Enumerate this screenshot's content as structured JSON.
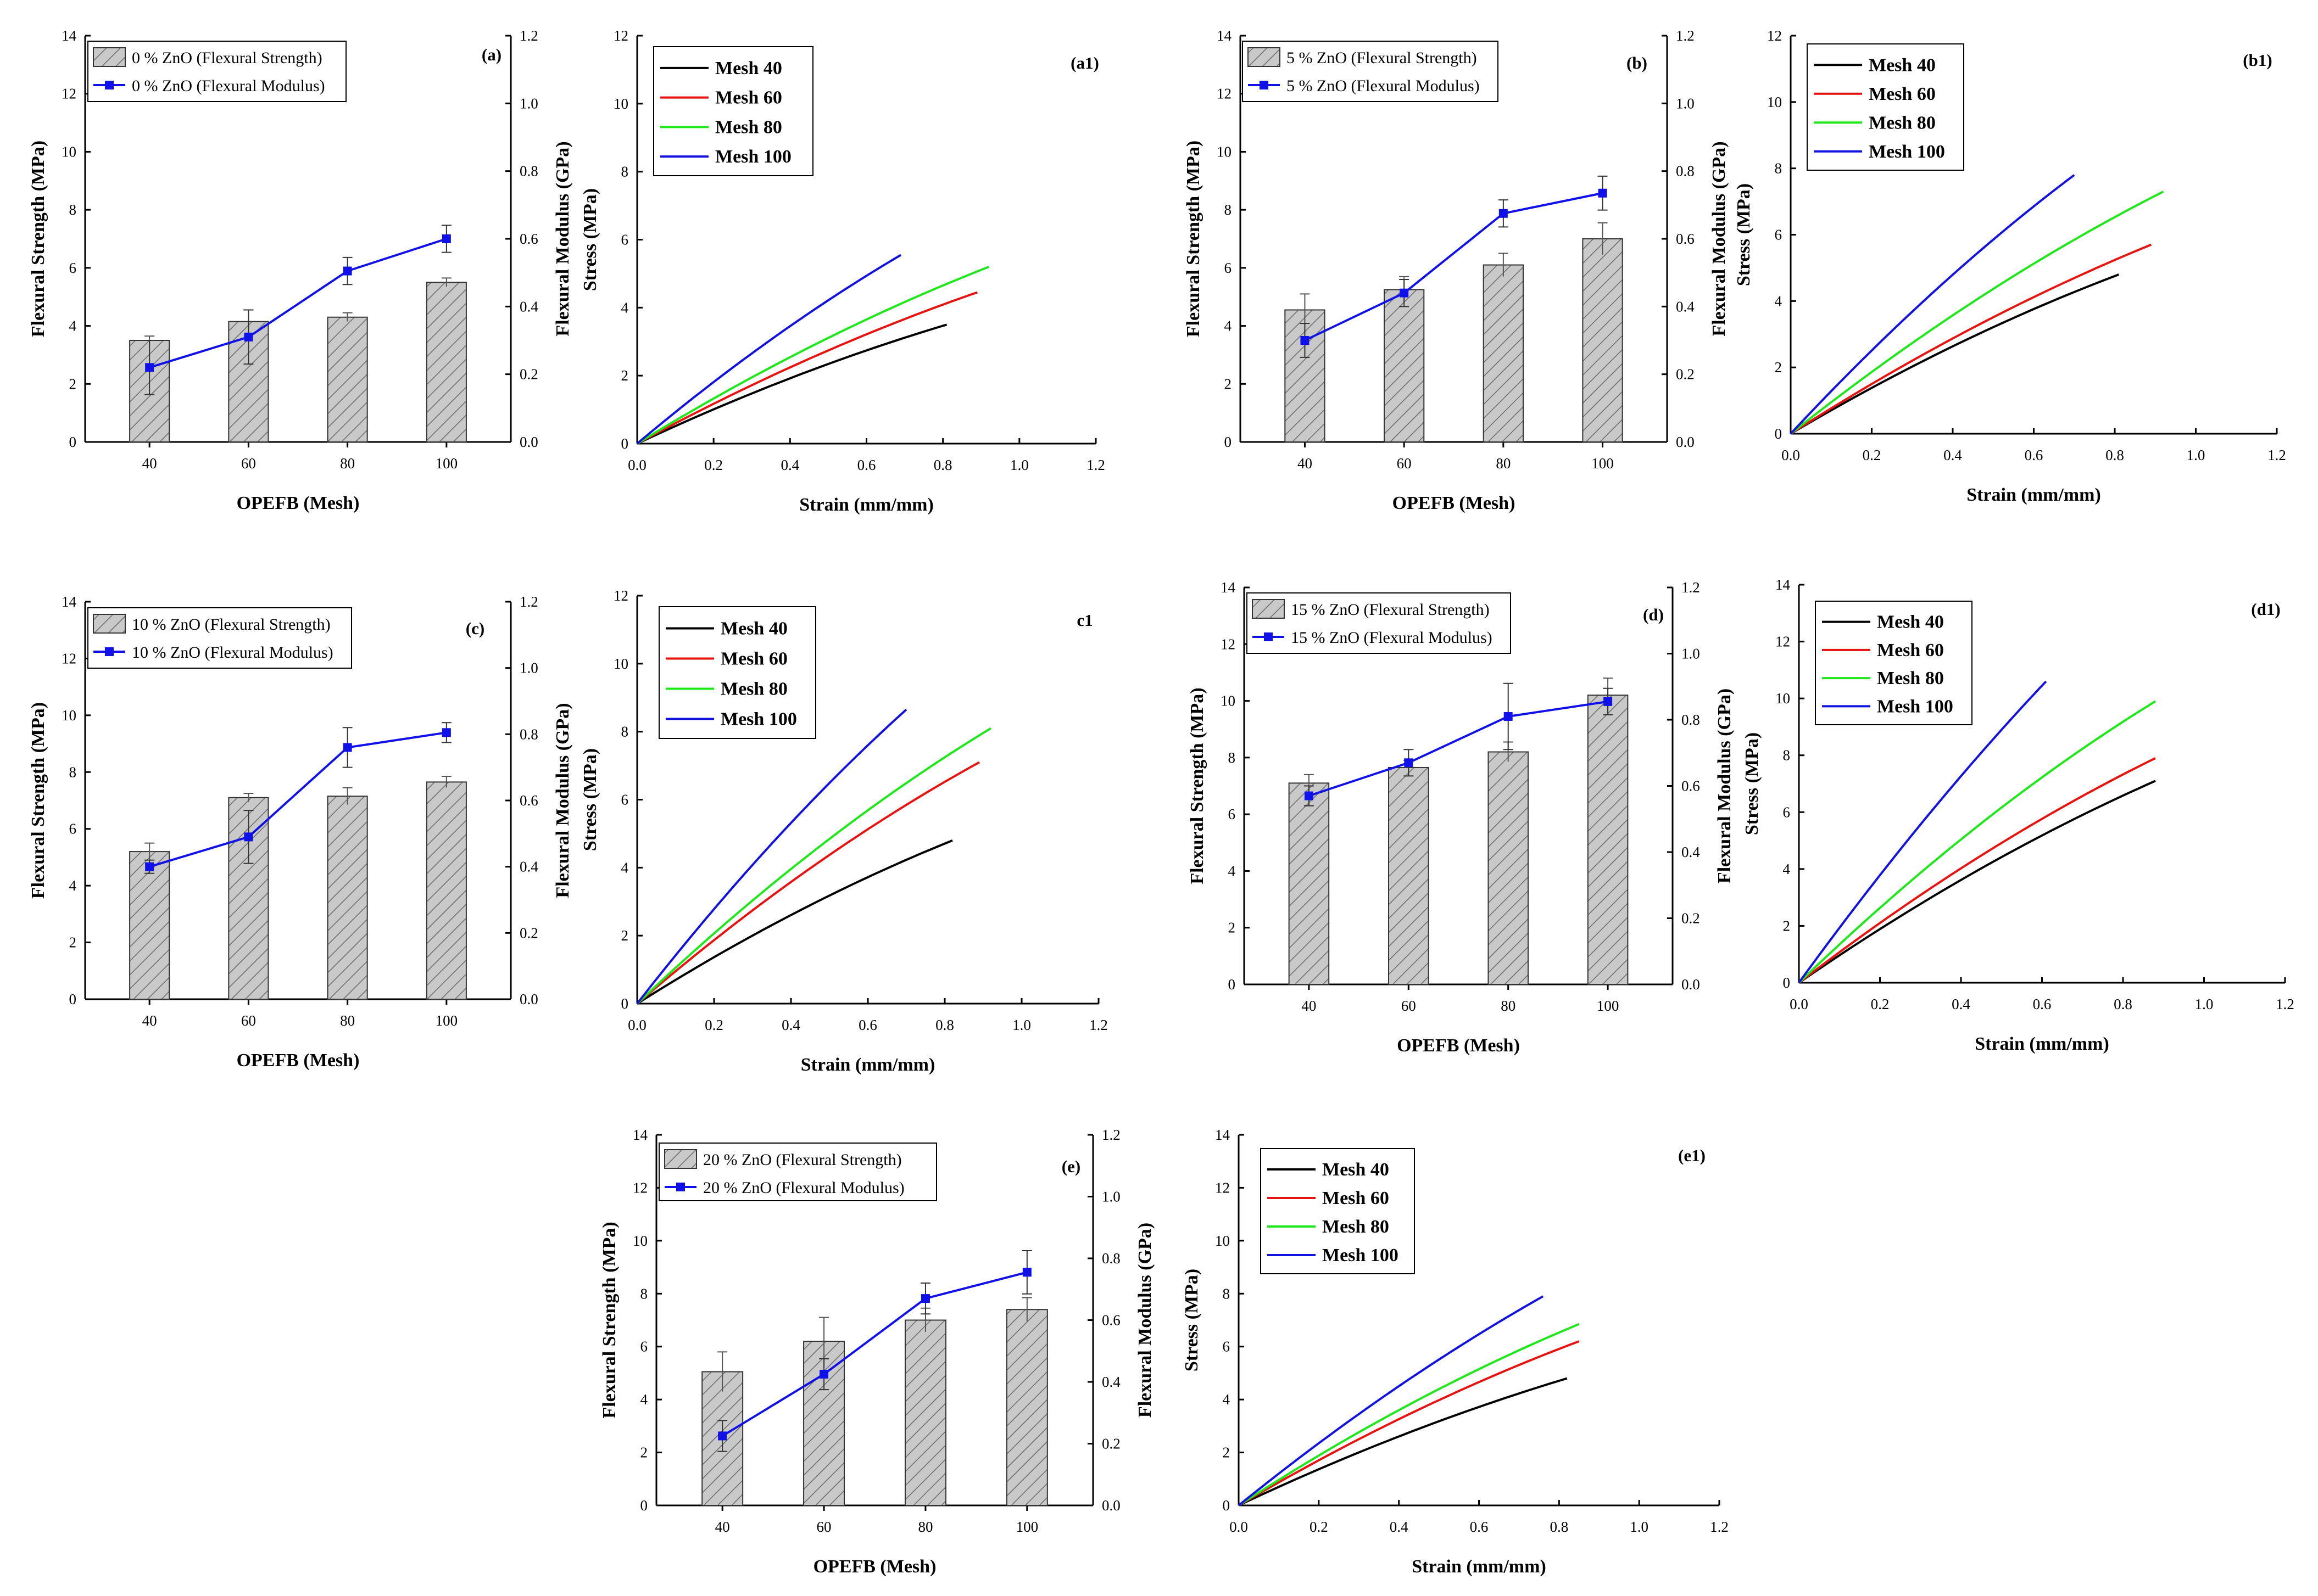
{
  "chart_data": [
    {
      "id": "a",
      "type": "bar",
      "label": "(a)",
      "xlabel": "OPEFB (Mesh)",
      "ylabel": "Flexural Strength (MPa)",
      "ylabel2": "Flexural Modulus (GPa)",
      "categories": [
        "40",
        "60",
        "80",
        "100"
      ],
      "ylim": [
        0,
        14
      ],
      "yticks": [
        "0",
        "2",
        "4",
        "6",
        "8",
        "10",
        "12",
        "14"
      ],
      "ylim2": [
        0,
        1.2
      ],
      "yticks2": [
        "0.0",
        "0.2",
        "0.4",
        "0.6",
        "0.8",
        "1.0",
        "1.2"
      ],
      "bar_series": {
        "name": "0 % ZnO (Flexural Strength)",
        "values": [
          3.5,
          4.15,
          4.3,
          5.5
        ],
        "errors": [
          0.15,
          0.4,
          0.15,
          0.15
        ]
      },
      "line_series": {
        "name": "0 % ZnO (Flexural Modulus)",
        "values": [
          0.22,
          0.31,
          0.505,
          0.6
        ],
        "errors": [
          0.08,
          0.08,
          0.04,
          0.04
        ]
      },
      "colors": {
        "line": "#1010e8",
        "bar": "#c8c8c8"
      }
    },
    {
      "id": "a1",
      "type": "line",
      "label": "(a1)",
      "xlabel": "Strain (mm/mm)",
      "ylabel": "Stress (MPa)",
      "xlim": [
        0,
        1.2
      ],
      "xticks": [
        "0.0",
        "0.2",
        "0.4",
        "0.6",
        "0.8",
        "1.0",
        "1.2"
      ],
      "ylim": [
        0,
        12
      ],
      "yticks": [
        "0",
        "2",
        "4",
        "6",
        "8",
        "10",
        "12"
      ],
      "series": [
        {
          "name": "Mesh 40",
          "color": "#000000",
          "x_end": 0.81,
          "y_end": 3.5,
          "curvature": 0.1
        },
        {
          "name": "Mesh 60",
          "color": "#e8120e",
          "x_end": 0.89,
          "y_end": 4.45,
          "curvature": 0.1
        },
        {
          "name": "Mesh 80",
          "color": "#1ee81a",
          "x_end": 0.92,
          "y_end": 5.2,
          "curvature": 0.1
        },
        {
          "name": "Mesh 100",
          "color": "#1212e0",
          "x_end": 0.69,
          "y_end": 5.55,
          "curvature": 0.08
        }
      ]
    },
    {
      "id": "b",
      "type": "bar",
      "label": "(b)",
      "xlabel": "OPEFB (Mesh)",
      "ylabel": "Flexural Strength (MPa)",
      "ylabel2": "Flexural Modulus (GPa)",
      "categories": [
        "40",
        "60",
        "80",
        "100"
      ],
      "ylim": [
        0,
        14
      ],
      "yticks": [
        "0",
        "2",
        "4",
        "6",
        "8",
        "10",
        "12",
        "14"
      ],
      "ylim2": [
        0,
        1.2
      ],
      "yticks2": [
        "0.0",
        "0.2",
        "0.4",
        "0.6",
        "0.8",
        "1.0",
        "1.2"
      ],
      "bar_series": {
        "name": "5 % ZnO (Flexural Strength)",
        "values": [
          4.55,
          5.25,
          6.1,
          7.0
        ],
        "errors": [
          0.55,
          0.45,
          0.4,
          0.55
        ]
      },
      "line_series": {
        "name": "5 % ZnO (Flexural Modulus)",
        "values": [
          0.3,
          0.44,
          0.675,
          0.735
        ],
        "errors": [
          0.05,
          0.04,
          0.04,
          0.05
        ]
      },
      "colors": {
        "line": "#1010e8",
        "bar": "#c8c8c8"
      }
    },
    {
      "id": "b1",
      "type": "line",
      "label": "(b1)",
      "xlabel": "Strain (mm/mm)",
      "ylabel": "Stress (MPa)",
      "xlim": [
        0,
        1.2
      ],
      "xticks": [
        "0.0",
        "0.2",
        "0.4",
        "0.6",
        "0.8",
        "1.0",
        "1.2"
      ],
      "ylim": [
        0,
        12
      ],
      "yticks": [
        "0",
        "2",
        "4",
        "6",
        "8",
        "10",
        "12"
      ],
      "series": [
        {
          "name": "Mesh 40",
          "color": "#000000",
          "x_end": 0.81,
          "y_end": 4.8,
          "curvature": 0.1
        },
        {
          "name": "Mesh 60",
          "color": "#e8120e",
          "x_end": 0.89,
          "y_end": 5.7,
          "curvature": 0.1
        },
        {
          "name": "Mesh 80",
          "color": "#1ee81a",
          "x_end": 0.92,
          "y_end": 7.3,
          "curvature": 0.1
        },
        {
          "name": "Mesh 100",
          "color": "#1212e0",
          "x_end": 0.7,
          "y_end": 7.8,
          "curvature": 0.08
        }
      ]
    },
    {
      "id": "c",
      "type": "bar",
      "label": "(c)",
      "xlabel": "OPEFB (Mesh)",
      "ylabel": "Flexural Strength (MPa)",
      "ylabel2": "Flexural Modulus (GPa)",
      "categories": [
        "40",
        "60",
        "80",
        "100"
      ],
      "ylim": [
        0,
        14
      ],
      "yticks": [
        "0",
        "2",
        "4",
        "6",
        "8",
        "10",
        "12",
        "14"
      ],
      "ylim2": [
        0,
        1.2
      ],
      "yticks2": [
        "0.0",
        "0.2",
        "0.4",
        "0.6",
        "0.8",
        "1.0",
        "1.2"
      ],
      "bar_series": {
        "name": "10 % ZnO (Flexural Strength)",
        "values": [
          5.2,
          7.1,
          7.15,
          7.65
        ],
        "errors": [
          0.3,
          0.15,
          0.3,
          0.2
        ]
      },
      "line_series": {
        "name": "10 % ZnO (Flexural Modulus)",
        "values": [
          0.4,
          0.49,
          0.76,
          0.805
        ],
        "errors": [
          0.02,
          0.08,
          0.06,
          0.03
        ]
      },
      "colors": {
        "line": "#1010e8",
        "bar": "#c8c8c8"
      }
    },
    {
      "id": "c1",
      "type": "line",
      "label": "c1",
      "xlabel": "Strain (mm/mm)",
      "ylabel": "Stress (MPa)",
      "xlim": [
        0,
        1.2
      ],
      "xticks": [
        "0.0",
        "0.2",
        "0.4",
        "0.6",
        "0.8",
        "1.0",
        "1.2"
      ],
      "ylim": [
        0,
        12
      ],
      "yticks": [
        "0",
        "2",
        "4",
        "6",
        "8",
        "10",
        "12"
      ],
      "series": [
        {
          "name": "Mesh 40",
          "color": "#000000",
          "x_end": 0.82,
          "y_end": 4.8,
          "curvature": 0.1
        },
        {
          "name": "Mesh 60",
          "color": "#e8120e",
          "x_end": 0.89,
          "y_end": 7.1,
          "curvature": 0.1
        },
        {
          "name": "Mesh 80",
          "color": "#1ee81a",
          "x_end": 0.92,
          "y_end": 8.1,
          "curvature": 0.1
        },
        {
          "name": "Mesh 100",
          "color": "#1212e0",
          "x_end": 0.7,
          "y_end": 8.65,
          "curvature": 0.08
        }
      ]
    },
    {
      "id": "d",
      "type": "bar",
      "label": "(d)",
      "xlabel": "OPEFB (Mesh)",
      "ylabel": "Flexural Strength (MPa)",
      "ylabel2": "Flexural Modulus (GPa)",
      "categories": [
        "40",
        "60",
        "80",
        "100"
      ],
      "ylim": [
        0,
        14
      ],
      "yticks": [
        "0",
        "2",
        "4",
        "6",
        "8",
        "10",
        "12",
        "14"
      ],
      "ylim2": [
        0,
        1.2
      ],
      "yticks2": [
        "0.0",
        "0.2",
        "0.4",
        "0.6",
        "0.8",
        "1.0",
        "1.2"
      ],
      "bar_series": {
        "name": "15 % ZnO (Flexural Strength)",
        "values": [
          7.1,
          7.65,
          8.2,
          10.2
        ],
        "errors": [
          0.3,
          0.25,
          0.35,
          0.6
        ]
      },
      "line_series": {
        "name": "15 % ZnO (Flexural Modulus)",
        "values": [
          0.57,
          0.67,
          0.81,
          0.855
        ],
        "errors": [
          0.03,
          0.04,
          0.1,
          0.04
        ]
      },
      "colors": {
        "line": "#1010e8",
        "bar": "#c8c8c8"
      }
    },
    {
      "id": "d1",
      "type": "line",
      "label": "(d1)",
      "xlabel": "Strain (mm/mm)",
      "ylabel": "Stress (MPa)",
      "xlim": [
        0,
        1.2
      ],
      "xticks": [
        "0.0",
        "0.2",
        "0.4",
        "0.6",
        "0.8",
        "1.0",
        "1.2"
      ],
      "ylim": [
        0,
        14
      ],
      "yticks": [
        "0",
        "2",
        "4",
        "6",
        "8",
        "10",
        "12",
        "14"
      ],
      "series": [
        {
          "name": "Mesh 40",
          "color": "#000000",
          "x_end": 0.88,
          "y_end": 7.1,
          "curvature": 0.1
        },
        {
          "name": "Mesh 60",
          "color": "#e8120e",
          "x_end": 0.88,
          "y_end": 7.9,
          "curvature": 0.1
        },
        {
          "name": "Mesh 80",
          "color": "#1ee81a",
          "x_end": 0.88,
          "y_end": 9.9,
          "curvature": 0.1
        },
        {
          "name": "Mesh 100",
          "color": "#1212e0",
          "x_end": 0.61,
          "y_end": 10.6,
          "curvature": 0.06
        }
      ]
    },
    {
      "id": "e",
      "type": "bar",
      "label": "(e)",
      "xlabel": "OPEFB (Mesh)",
      "ylabel": "Flexural Strength (MPa)",
      "ylabel2": "Flexural Modulus (GPa)",
      "categories": [
        "40",
        "60",
        "80",
        "100"
      ],
      "ylim": [
        0,
        14
      ],
      "yticks": [
        "0",
        "2",
        "4",
        "6",
        "8",
        "10",
        "12",
        "14"
      ],
      "ylim2": [
        0,
        1.2
      ],
      "yticks2": [
        "0.0",
        "0.2",
        "0.4",
        "0.6",
        "0.8",
        "1.0",
        "1.2"
      ],
      "bar_series": {
        "name": "20 % ZnO (Flexural Strength)",
        "values": [
          5.05,
          6.2,
          7.0,
          7.4
        ],
        "errors": [
          0.75,
          0.9,
          0.45,
          0.45
        ]
      },
      "line_series": {
        "name": "20 % ZnO (Flexural Modulus)",
        "values": [
          0.225,
          0.425,
          0.67,
          0.755
        ],
        "errors": [
          0.05,
          0.05,
          0.05,
          0.07
        ]
      },
      "colors": {
        "line": "#1010e8",
        "bar": "#c8c8c8"
      }
    },
    {
      "id": "e1",
      "type": "line",
      "label": "(e1)",
      "xlabel": "Strain (mm/mm)",
      "ylabel": "Stress (MPa)",
      "xlim": [
        0,
        1.2
      ],
      "xticks": [
        "0.0",
        "0.2",
        "0.4",
        "0.6",
        "0.8",
        "1.0",
        "1.2"
      ],
      "ylim": [
        0,
        14
      ],
      "yticks": [
        "0",
        "2",
        "4",
        "6",
        "8",
        "10",
        "12",
        "14"
      ],
      "series": [
        {
          "name": "Mesh 40",
          "color": "#000000",
          "x_end": 0.82,
          "y_end": 4.8,
          "curvature": 0.1
        },
        {
          "name": "Mesh 60",
          "color": "#e8120e",
          "x_end": 0.85,
          "y_end": 6.2,
          "curvature": 0.1
        },
        {
          "name": "Mesh 80",
          "color": "#1ee81a",
          "x_end": 0.85,
          "y_end": 6.85,
          "curvature": 0.1
        },
        {
          "name": "Mesh 100",
          "color": "#1212e0",
          "x_end": 0.76,
          "y_end": 7.9,
          "curvature": 0.08
        }
      ]
    }
  ]
}
